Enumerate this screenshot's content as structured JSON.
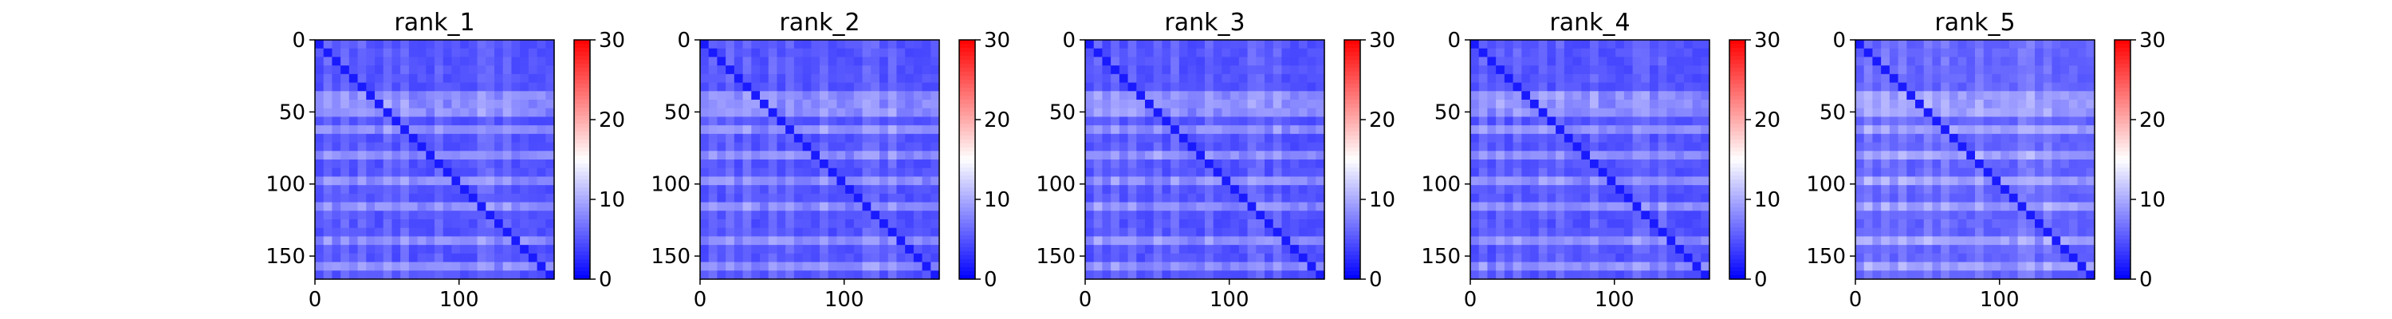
{
  "chart_data": [
    {
      "type": "heatmap",
      "title": "rank_1",
      "matrix_size": 166,
      "xticks": [
        0,
        100
      ],
      "yticks": [
        0,
        50,
        100,
        150
      ],
      "xlim": [
        0,
        166
      ],
      "ylim": [
        166,
        0
      ],
      "colorbar": {
        "colormap": "bwr",
        "range": [
          0,
          30
        ],
        "ticks": [
          0,
          10,
          20,
          30
        ]
      },
      "diagonal_value": 0,
      "typical_value": 4,
      "bright_rows": [
        38,
        48,
        63,
        80,
        98,
        118,
        141,
        157
      ],
      "bright_cols": [
        10,
        20,
        35,
        50,
        65,
        85,
        120,
        135
      ],
      "grid": false
    },
    {
      "type": "heatmap",
      "title": "rank_2",
      "matrix_size": 166,
      "xticks": [
        0,
        100
      ],
      "yticks": [
        0,
        50,
        100,
        150
      ],
      "xlim": [
        0,
        166
      ],
      "ylim": [
        166,
        0
      ],
      "colorbar": {
        "colormap": "bwr",
        "range": [
          0,
          30
        ],
        "ticks": [
          0,
          10,
          20,
          30
        ]
      },
      "diagonal_value": 0,
      "typical_value": 4,
      "bright_rows": [
        38,
        48,
        63,
        80,
        98,
        118,
        141,
        157
      ],
      "bright_cols": [
        10,
        20,
        35,
        50,
        65,
        85,
        120,
        135
      ],
      "grid": false
    },
    {
      "type": "heatmap",
      "title": "rank_3",
      "matrix_size": 166,
      "xticks": [
        0,
        100
      ],
      "yticks": [
        0,
        50,
        100,
        150
      ],
      "xlim": [
        0,
        166
      ],
      "ylim": [
        166,
        0
      ],
      "colorbar": {
        "colormap": "bwr",
        "range": [
          0,
          30
        ],
        "ticks": [
          0,
          10,
          20,
          30
        ]
      },
      "diagonal_value": 0,
      "typical_value": 4,
      "bright_rows": [
        38,
        48,
        63,
        80,
        98,
        118,
        141,
        157
      ],
      "bright_cols": [
        10,
        20,
        35,
        50,
        65,
        85,
        120,
        135
      ],
      "grid": false
    },
    {
      "type": "heatmap",
      "title": "rank_4",
      "matrix_size": 166,
      "xticks": [
        0,
        100
      ],
      "yticks": [
        0,
        50,
        100,
        150
      ],
      "xlim": [
        0,
        166
      ],
      "ylim": [
        166,
        0
      ],
      "colorbar": {
        "colormap": "bwr",
        "range": [
          0,
          30
        ],
        "ticks": [
          0,
          10,
          20,
          30
        ]
      },
      "diagonal_value": 0,
      "typical_value": 4,
      "bright_rows": [
        38,
        48,
        63,
        80,
        98,
        118,
        141,
        157
      ],
      "bright_cols": [
        10,
        20,
        35,
        50,
        65,
        85,
        120,
        135
      ],
      "grid": false
    },
    {
      "type": "heatmap",
      "title": "rank_5",
      "matrix_size": 166,
      "xticks": [
        0,
        100
      ],
      "yticks": [
        0,
        50,
        100,
        150
      ],
      "xlim": [
        0,
        166
      ],
      "ylim": [
        166,
        0
      ],
      "colorbar": {
        "colormap": "bwr",
        "range": [
          0,
          30
        ],
        "ticks": [
          0,
          10,
          20,
          30
        ]
      },
      "diagonal_value": 0,
      "typical_value": 5,
      "bright_rows": [
        38,
        48,
        63,
        80,
        98,
        118,
        141,
        157
      ],
      "bright_cols": [
        10,
        20,
        35,
        50,
        65,
        85,
        120,
        135
      ],
      "grid": false
    }
  ]
}
